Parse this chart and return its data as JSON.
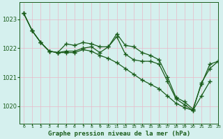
{
  "title": "Graphe pression niveau de la mer (hPa)",
  "bg_color": "#d5f0ee",
  "grid_color_v": "#e8b8c8",
  "grid_color_h": "#e8b8c8",
  "line_color": "#1a5c1a",
  "ylim": [
    1019.4,
    1023.6
  ],
  "xlim": [
    -0.5,
    23
  ],
  "yticks": [
    1020,
    1021,
    1022,
    1023
  ],
  "xticks": [
    0,
    1,
    2,
    3,
    4,
    5,
    6,
    7,
    8,
    9,
    10,
    11,
    12,
    13,
    14,
    15,
    16,
    17,
    18,
    19,
    20,
    21,
    22,
    23
  ],
  "series1_x": [
    0,
    1,
    2,
    3,
    4,
    5,
    6,
    7,
    8,
    9,
    10,
    11,
    12,
    13,
    14,
    15,
    16,
    17,
    18,
    19,
    20,
    21,
    22,
    23
  ],
  "series1_y": [
    1023.2,
    1022.6,
    1022.2,
    1021.9,
    1021.85,
    1022.15,
    1022.1,
    1022.2,
    1022.15,
    1022.05,
    1022.05,
    1022.5,
    1022.1,
    1022.05,
    1021.85,
    1021.75,
    1021.6,
    1021.0,
    1020.3,
    1020.15,
    1019.9,
    1020.75,
    1021.45,
    1021.55
  ],
  "series2_x": [
    0,
    1,
    2,
    3,
    4,
    5,
    6,
    7,
    8,
    9,
    10,
    11,
    12,
    13,
    14,
    15,
    16,
    17,
    18,
    19,
    20,
    21,
    22,
    23
  ],
  "series2_y": [
    1023.2,
    1022.6,
    1022.2,
    1021.9,
    1021.85,
    1021.9,
    1021.9,
    1022.0,
    1022.05,
    1021.85,
    1022.05,
    1022.4,
    1021.8,
    1021.6,
    1021.55,
    1021.55,
    1021.45,
    1020.85,
    1020.25,
    1020.05,
    1019.85,
    1020.8,
    1021.3,
    1021.55
  ],
  "series3_x": [
    0,
    1,
    2,
    3,
    4,
    5,
    6,
    7,
    8,
    9,
    10,
    11,
    12,
    13,
    14,
    15,
    16,
    17,
    18,
    19,
    20,
    21,
    22
  ],
  "series3_y": [
    1023.2,
    1022.6,
    1022.2,
    1021.9,
    1021.85,
    1021.85,
    1021.85,
    1021.95,
    1021.9,
    1021.75,
    1021.65,
    1021.5,
    1021.3,
    1021.1,
    1020.9,
    1020.75,
    1020.6,
    1020.35,
    1020.1,
    1019.95,
    1019.85,
    1020.35,
    1020.85
  ]
}
